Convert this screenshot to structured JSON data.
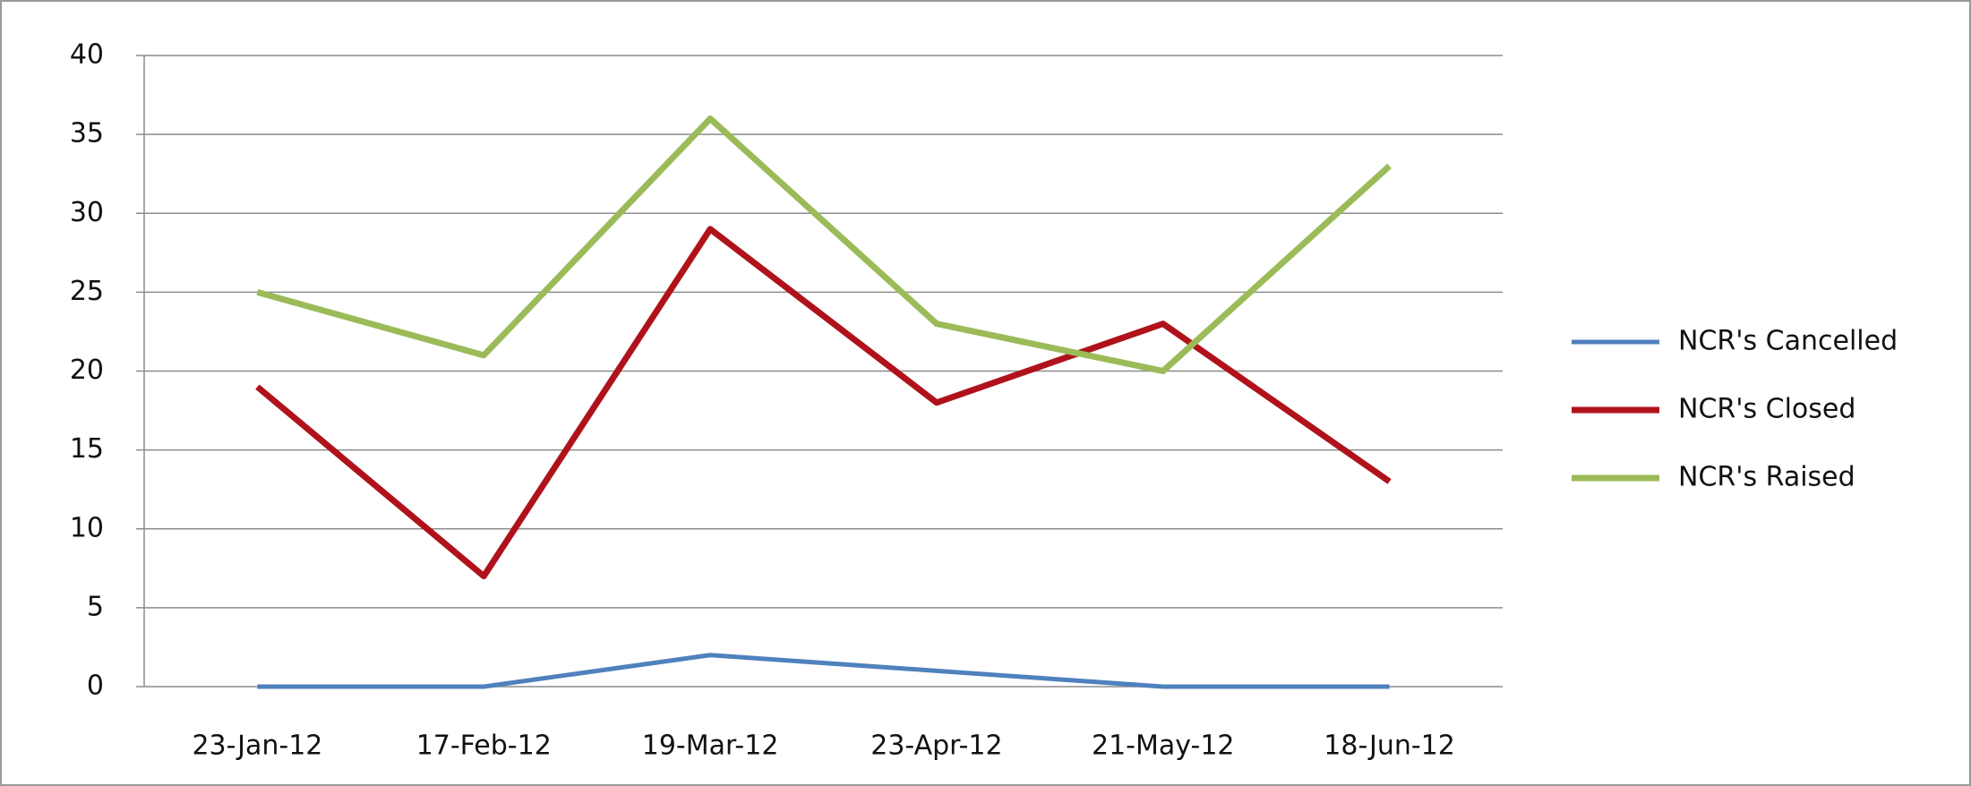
{
  "chart_data": {
    "type": "line",
    "categories": [
      "23-Jan-12",
      "17-Feb-12",
      "19-Mar-12",
      "23-Apr-12",
      "21-May-12",
      "18-Jun-12"
    ],
    "series": [
      {
        "name": "NCR's Cancelled",
        "color": "#4f81bd",
        "values": [
          0,
          0,
          2,
          1,
          0,
          0
        ]
      },
      {
        "name": "NCR's Closed",
        "color": "#b0121b",
        "values": [
          19,
          7,
          29,
          18,
          23,
          13
        ]
      },
      {
        "name": "NCR's Raised",
        "color": "#9bbb59",
        "values": [
          25,
          21,
          36,
          23,
          20,
          33
        ]
      }
    ],
    "ylim": [
      0,
      40
    ],
    "yticks": [
      0,
      5,
      10,
      15,
      20,
      25,
      30,
      35,
      40
    ],
    "grid": true,
    "legend": "right"
  }
}
